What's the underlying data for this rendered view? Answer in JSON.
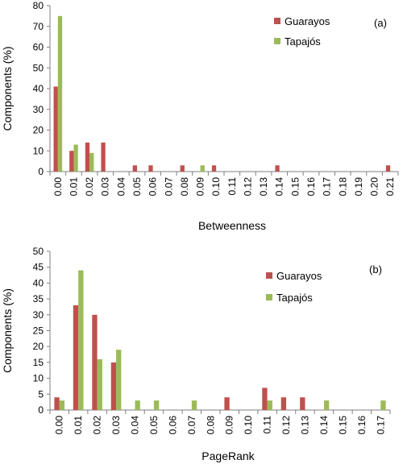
{
  "colors": {
    "guarayos": "#c0504d",
    "tapajos": "#9bbb59",
    "axis": "#7f7f7f"
  },
  "chart_data": [
    {
      "type": "bar",
      "panel_label": "(a)",
      "xlabel": "Betweenness",
      "ylabel": "Components (%)",
      "ylim": [
        0,
        80
      ],
      "yticks": [
        "0",
        "10",
        "20",
        "30",
        "40",
        "50",
        "60",
        "70",
        "80"
      ],
      "categories": [
        "0.00",
        "0.01",
        "0.02",
        "0.03",
        "0.04",
        "0.05",
        "0.06",
        "0.07",
        "0.08",
        "0.09",
        "0.10",
        "0.11",
        "0.12",
        "0.13",
        "0.14",
        "0.15",
        "0.16",
        "0.17",
        "0.18",
        "0.19",
        "0.20",
        "0.21"
      ],
      "grid": false,
      "legend_position": "top-right",
      "series": [
        {
          "name": "Guarayos",
          "values": [
            41,
            10,
            14,
            14,
            0,
            3,
            3,
            0,
            3,
            0,
            3,
            0,
            0,
            0,
            3,
            0,
            0,
            0,
            0,
            0,
            0,
            3
          ]
        },
        {
          "name": "Tapajós",
          "values": [
            75,
            13,
            9,
            0,
            0,
            0,
            0,
            0,
            0,
            3,
            0,
            0,
            0,
            0,
            0,
            0,
            0,
            0,
            0,
            0,
            0,
            0
          ]
        }
      ]
    },
    {
      "type": "bar",
      "panel_label": "(b)",
      "xlabel": "PageRank",
      "ylabel": "Components (%)",
      "ylim": [
        0,
        50
      ],
      "yticks": [
        "0",
        "5",
        "10",
        "15",
        "20",
        "25",
        "30",
        "35",
        "40",
        "45",
        "50"
      ],
      "categories": [
        "0.00",
        "0.01",
        "0.02",
        "0.03",
        "0.04",
        "0.05",
        "0.06",
        "0.07",
        "0.08",
        "0.09",
        "0.10",
        "0.11",
        "0.12",
        "0.13",
        "0.14",
        "0.15",
        "0.16",
        "0.17"
      ],
      "grid": false,
      "legend_position": "top-right",
      "series": [
        {
          "name": "Guarayos",
          "values": [
            4,
            33,
            30,
            15,
            0,
            0,
            0,
            0,
            0,
            4,
            0,
            7,
            4,
            4,
            0,
            0,
            0,
            0
          ]
        },
        {
          "name": "Tapajós",
          "values": [
            3,
            44,
            16,
            19,
            3,
            3,
            0,
            3,
            0,
            0,
            0,
            3,
            0,
            0,
            3,
            0,
            0,
            3
          ]
        }
      ]
    }
  ]
}
